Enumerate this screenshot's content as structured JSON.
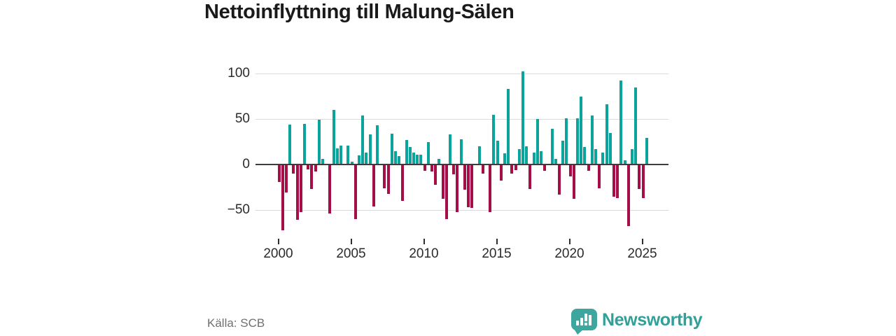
{
  "title": "Nettoinflyttning till Malung-Sälen",
  "footer": {
    "source": "Källa: SCB",
    "brand": "Newsworthy"
  },
  "chart_data": {
    "type": "bar",
    "title": "Nettoinflyttning till Malung-Sälen",
    "xlabel": "",
    "ylabel": "",
    "frequency": "quarterly",
    "x_start_year": 2000,
    "x_ticks": [
      2000,
      2005,
      2010,
      2015,
      2020,
      2025
    ],
    "y_ticks": [
      100,
      50,
      0,
      -50
    ],
    "ylim": [
      -80,
      112
    ],
    "grid": "horizontal",
    "legend": "none",
    "colors": {
      "positive": "#0ba49d",
      "negative": "#a50e47"
    },
    "values": [
      -19,
      -72,
      -31,
      44,
      -10,
      -61,
      -52,
      45,
      -5,
      -27,
      -8,
      49,
      6,
      0,
      -54,
      60,
      18,
      21,
      0,
      21,
      3,
      -60,
      10,
      54,
      13,
      33,
      -46,
      43,
      0,
      -26,
      -32,
      34,
      15,
      9,
      -40,
      27,
      19,
      13,
      11,
      11,
      -7,
      25,
      -8,
      -22,
      6,
      -38,
      -60,
      33,
      -11,
      -52,
      28,
      -28,
      -47,
      -48,
      0,
      20,
      -10,
      0,
      -52,
      55,
      26,
      -18,
      12,
      83,
      -10,
      -6,
      17,
      102,
      20,
      -27,
      13,
      50,
      15,
      -7,
      0,
      39,
      6,
      -33,
      26,
      51,
      -13,
      -38,
      51,
      75,
      19,
      -7,
      54,
      17,
      -26,
      13,
      66,
      35,
      -35,
      -37,
      92,
      5,
      -68,
      17,
      85,
      -27,
      -37,
      29,
      0,
      0
    ]
  }
}
